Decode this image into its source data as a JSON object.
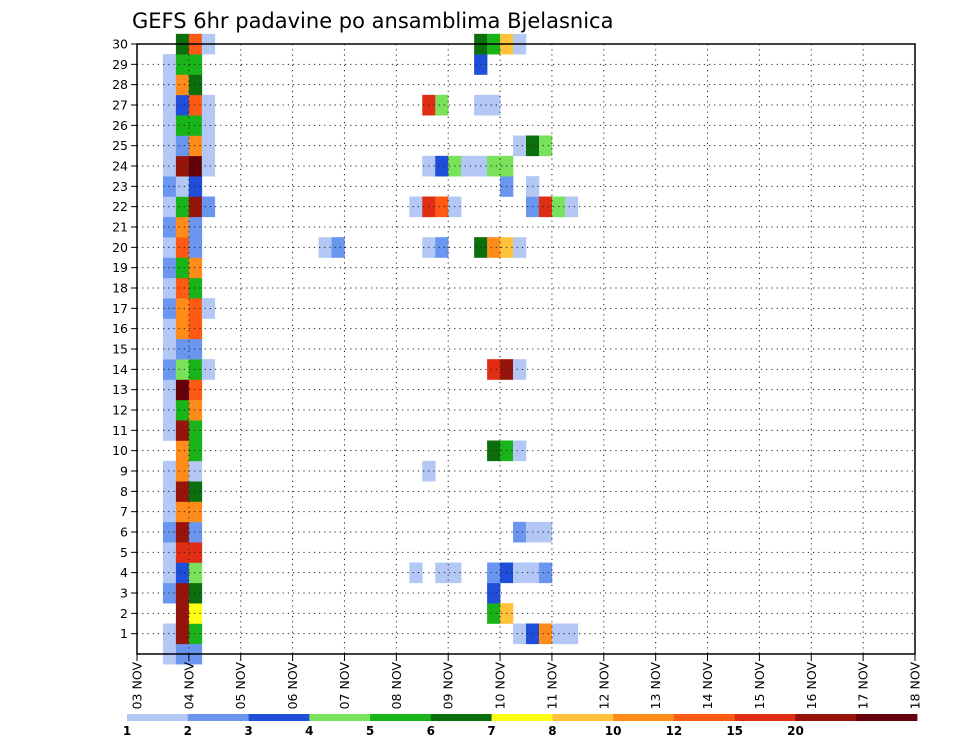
{
  "chart_data": {
    "type": "heatmap",
    "title": "GEFS 6hr padavine po ansamblima Bjelasnica",
    "xlabel": "",
    "ylabel": "",
    "x_ticks": [
      "03 NOV",
      "04 NOV",
      "05 NOV",
      "06 NOV",
      "07 NOV",
      "08 NOV",
      "09 NOV",
      "10 NOV",
      "11 NOV",
      "12 NOV",
      "13 NOV",
      "14 NOV",
      "15 NOV",
      "16 NOV",
      "17 NOV",
      "18 NOV"
    ],
    "y_ticks": [
      "1",
      "2",
      "3",
      "4",
      "5",
      "6",
      "7",
      "8",
      "9",
      "10",
      "11",
      "12",
      "13",
      "14",
      "15",
      "16",
      "17",
      "18",
      "19",
      "20",
      "21",
      "22",
      "23",
      "24",
      "25",
      "26",
      "27",
      "28",
      "29",
      "30"
    ],
    "xlim_hours": [
      0,
      360
    ],
    "ylim_members": [
      0,
      30
    ],
    "grid": true,
    "colorbar": {
      "labels": [
        "1",
        "2",
        "3",
        "4",
        "5",
        "6",
        "7",
        "8",
        "10",
        "12",
        "15",
        "20"
      ],
      "colors": [
        "#b4c8f5",
        "#6a96f0",
        "#1f4fd8",
        "#7ae15a",
        "#19b419",
        "#0d6e0d",
        "#ffff14",
        "#ffc23a",
        "#ff8c1a",
        "#ff5a14",
        "#e12d14",
        "#96140a",
        "#64000a"
      ]
    },
    "palette": [
      "#b4c8f5",
      "#6a96f0",
      "#1f4fd8",
      "#7ae15a",
      "#19b419",
      "#0d6e0d",
      "#ffff14",
      "#ffc23a",
      "#ff8c1a",
      "#ff5a14",
      "#e12d14",
      "#96140a",
      "#64000a"
    ],
    "cells": [
      [
        0,
        2,
        0
      ],
      [
        0,
        3,
        1
      ],
      [
        0,
        4,
        1
      ],
      [
        1,
        2,
        0
      ],
      [
        1,
        3,
        11
      ],
      [
        1,
        4,
        4
      ],
      [
        2,
        3,
        11
      ],
      [
        2,
        4,
        6
      ],
      [
        3,
        2,
        1
      ],
      [
        3,
        3,
        11
      ],
      [
        3,
        4,
        5
      ],
      [
        4,
        2,
        0
      ],
      [
        4,
        3,
        2
      ],
      [
        4,
        4,
        3
      ],
      [
        5,
        2,
        0
      ],
      [
        5,
        3,
        10
      ],
      [
        5,
        4,
        10
      ],
      [
        6,
        2,
        1
      ],
      [
        6,
        3,
        11
      ],
      [
        6,
        4,
        1
      ],
      [
        7,
        2,
        0
      ],
      [
        7,
        3,
        8
      ],
      [
        7,
        4,
        8
      ],
      [
        8,
        2,
        0
      ],
      [
        8,
        3,
        11
      ],
      [
        8,
        4,
        5
      ],
      [
        9,
        2,
        0
      ],
      [
        9,
        3,
        8
      ],
      [
        9,
        4,
        0
      ],
      [
        10,
        3,
        8
      ],
      [
        10,
        4,
        4
      ],
      [
        11,
        2,
        0
      ],
      [
        11,
        3,
        11
      ],
      [
        11,
        4,
        4
      ],
      [
        12,
        2,
        0
      ],
      [
        12,
        3,
        4
      ],
      [
        12,
        4,
        8
      ],
      [
        13,
        2,
        0
      ],
      [
        13,
        3,
        12
      ],
      [
        13,
        4,
        9
      ],
      [
        14,
        2,
        1
      ],
      [
        14,
        3,
        3
      ],
      [
        14,
        4,
        4
      ],
      [
        14,
        5,
        0
      ],
      [
        15,
        2,
        0
      ],
      [
        15,
        3,
        1
      ],
      [
        15,
        4,
        1
      ],
      [
        16,
        2,
        0
      ],
      [
        16,
        3,
        8
      ],
      [
        16,
        4,
        9
      ],
      [
        17,
        2,
        1
      ],
      [
        17,
        3,
        8
      ],
      [
        17,
        4,
        9
      ],
      [
        17,
        5,
        0
      ],
      [
        18,
        2,
        0
      ],
      [
        18,
        3,
        9
      ],
      [
        18,
        4,
        4
      ],
      [
        19,
        2,
        1
      ],
      [
        19,
        3,
        4
      ],
      [
        19,
        4,
        8
      ],
      [
        20,
        2,
        0
      ],
      [
        20,
        3,
        9
      ],
      [
        20,
        4,
        1
      ],
      [
        21,
        2,
        1
      ],
      [
        21,
        3,
        8
      ],
      [
        21,
        4,
        1
      ],
      [
        22,
        2,
        0
      ],
      [
        22,
        3,
        4
      ],
      [
        22,
        4,
        11
      ],
      [
        22,
        5,
        1
      ],
      [
        23,
        2,
        1
      ],
      [
        23,
        3,
        0
      ],
      [
        23,
        4,
        2
      ],
      [
        24,
        2,
        0
      ],
      [
        24,
        3,
        11
      ],
      [
        24,
        4,
        12
      ],
      [
        24,
        5,
        0
      ],
      [
        25,
        2,
        0
      ],
      [
        25,
        3,
        1
      ],
      [
        25,
        4,
        8
      ],
      [
        25,
        5,
        0
      ],
      [
        26,
        2,
        0
      ],
      [
        26,
        3,
        4
      ],
      [
        26,
        4,
        4
      ],
      [
        26,
        5,
        0
      ],
      [
        27,
        2,
        0
      ],
      [
        27,
        3,
        2
      ],
      [
        27,
        4,
        9
      ],
      [
        27,
        5,
        0
      ],
      [
        28,
        2,
        0
      ],
      [
        28,
        3,
        8
      ],
      [
        28,
        4,
        5
      ],
      [
        29,
        2,
        0
      ],
      [
        29,
        3,
        4
      ],
      [
        29,
        4,
        4
      ],
      [
        30,
        3,
        5
      ],
      [
        30,
        4,
        9
      ],
      [
        30,
        5,
        0
      ],
      [
        27,
        22,
        10
      ],
      [
        27,
        23,
        3
      ],
      [
        20,
        14,
        0
      ],
      [
        20,
        15,
        1
      ],
      [
        2,
        27,
        4
      ],
      [
        2,
        28,
        7
      ],
      [
        3,
        27,
        2
      ],
      [
        4,
        21,
        0
      ],
      [
        4,
        23,
        0
      ],
      [
        4,
        24,
        0
      ],
      [
        4,
        27,
        1
      ],
      [
        4,
        28,
        2
      ],
      [
        4,
        29,
        0
      ],
      [
        4,
        30,
        0
      ],
      [
        4,
        31,
        1
      ],
      [
        1,
        29,
        0
      ],
      [
        1,
        30,
        2
      ],
      [
        1,
        31,
        8
      ],
      [
        1,
        32,
        0
      ],
      [
        1,
        33,
        0
      ],
      [
        6,
        29,
        1
      ],
      [
        6,
        30,
        0
      ],
      [
        6,
        31,
        0
      ],
      [
        9,
        22,
        0
      ],
      [
        10,
        27,
        5
      ],
      [
        10,
        28,
        4
      ],
      [
        10,
        29,
        0
      ],
      [
        14,
        27,
        10
      ],
      [
        14,
        28,
        11
      ],
      [
        14,
        29,
        0
      ],
      [
        20,
        22,
        0
      ],
      [
        20,
        23,
        1
      ],
      [
        20,
        26,
        5
      ],
      [
        20,
        27,
        8
      ],
      [
        20,
        28,
        7
      ],
      [
        20,
        29,
        0
      ],
      [
        22,
        21,
        0
      ],
      [
        22,
        22,
        10
      ],
      [
        22,
        23,
        9
      ],
      [
        22,
        24,
        0
      ],
      [
        22,
        30,
        1
      ],
      [
        22,
        31,
        10
      ],
      [
        22,
        32,
        3
      ],
      [
        22,
        33,
        0
      ],
      [
        23,
        28,
        1
      ],
      [
        23,
        30,
        0
      ],
      [
        24,
        22,
        0
      ],
      [
        24,
        23,
        2
      ],
      [
        24,
        24,
        3
      ],
      [
        24,
        25,
        0
      ],
      [
        24,
        26,
        0
      ],
      [
        24,
        27,
        3
      ],
      [
        24,
        28,
        3
      ],
      [
        25,
        29,
        0
      ],
      [
        25,
        30,
        5
      ],
      [
        25,
        31,
        3
      ],
      [
        27,
        26,
        0
      ],
      [
        27,
        27,
        0
      ],
      [
        29,
        26,
        2
      ],
      [
        30,
        26,
        5
      ],
      [
        30,
        27,
        4
      ],
      [
        30,
        28,
        7
      ],
      [
        30,
        29,
        0
      ]
    ]
  }
}
